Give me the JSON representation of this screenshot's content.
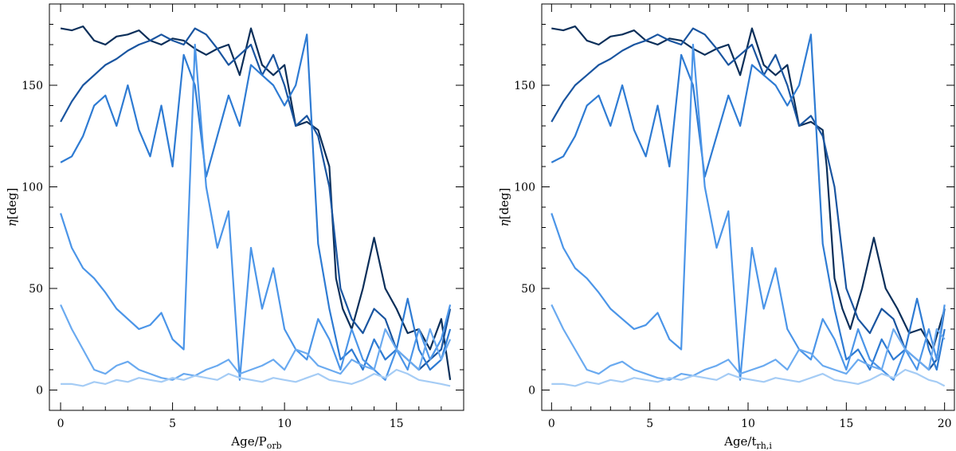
{
  "chart_data": [
    {
      "type": "line",
      "xlabel_main": "Age/P",
      "xlabel_sub": "orb",
      "ylabel_symbol": "η",
      "ylabel_unit": "[deg]",
      "xlim": [
        -0.5,
        18
      ],
      "ylim": [
        -10,
        190
      ],
      "xticks": [
        0,
        5,
        10,
        15
      ],
      "xtick_labels": [
        "0",
        "5",
        "10",
        "15"
      ],
      "yticks": [
        0,
        50,
        100,
        150
      ],
      "ytick_labels": [
        "0",
        "50",
        "100",
        "150"
      ],
      "series": [
        {
          "color": "#0b2f5a",
          "x": [
            0,
            0.5,
            1,
            1.5,
            2,
            2.5,
            3,
            3.5,
            4,
            4.5,
            5,
            5.5,
            6,
            6.5,
            7,
            7.5,
            8,
            8.5,
            9,
            9.5,
            10,
            10.5,
            11,
            11.5,
            12,
            12.3,
            12.6,
            13,
            13.5,
            14,
            14.5,
            15,
            15.5,
            16,
            16.5,
            17,
            17.4
          ],
          "y": [
            178,
            177,
            179,
            172,
            170,
            174,
            175,
            177,
            172,
            170,
            173,
            172,
            168,
            165,
            168,
            170,
            155,
            178,
            160,
            155,
            160,
            130,
            132,
            128,
            110,
            55,
            40,
            30,
            50,
            75,
            50,
            40,
            28,
            30,
            20,
            35,
            5
          ]
        },
        {
          "color": "#1a55a0",
          "x": [
            0,
            0.5,
            1,
            1.5,
            2,
            2.5,
            3,
            3.5,
            4,
            4.5,
            5,
            5.5,
            6,
            6.5,
            7,
            7.5,
            8,
            8.5,
            9,
            9.5,
            10,
            10.5,
            11,
            11.5,
            12,
            12.5,
            13,
            13.5,
            14,
            14.5,
            15,
            15.5,
            16,
            16.5,
            17,
            17.4
          ],
          "y": [
            132,
            142,
            150,
            155,
            160,
            163,
            167,
            170,
            172,
            175,
            172,
            170,
            178,
            175,
            168,
            160,
            165,
            170,
            155,
            165,
            150,
            130,
            135,
            125,
            100,
            50,
            35,
            28,
            40,
            35,
            20,
            15,
            10,
            15,
            20,
            40
          ]
        },
        {
          "color": "#2e7bd3",
          "x": [
            0,
            0.5,
            1,
            1.5,
            2,
            2.5,
            3,
            3.5,
            4,
            4.5,
            5,
            5.5,
            6,
            6.5,
            7,
            7.5,
            8,
            8.5,
            9,
            9.5,
            10,
            10.5,
            11,
            11.5,
            12,
            12.5,
            13,
            13.5,
            14,
            14.5,
            15,
            15.5,
            16,
            16.5,
            17,
            17.4
          ],
          "y": [
            112,
            115,
            125,
            140,
            145,
            130,
            150,
            128,
            115,
            140,
            110,
            165,
            150,
            105,
            125,
            145,
            130,
            160,
            155,
            150,
            140,
            150,
            175,
            72,
            40,
            15,
            20,
            10,
            25,
            15,
            20,
            45,
            20,
            10,
            15,
            30
          ]
        },
        {
          "color": "#4b95e8",
          "x": [
            0,
            0.5,
            1,
            1.5,
            2,
            2.5,
            3,
            3.5,
            4,
            4.5,
            5,
            5.5,
            6,
            6.5,
            7,
            7.5,
            8,
            8.5,
            9,
            9.5,
            10,
            10.5,
            11,
            11.5,
            12,
            12.5,
            13,
            13.5,
            14,
            14.5,
            15,
            15.5,
            16,
            16.5,
            17,
            17.4
          ],
          "y": [
            87,
            70,
            60,
            55,
            48,
            40,
            35,
            30,
            32,
            38,
            25,
            20,
            170,
            100,
            70,
            88,
            5,
            70,
            40,
            60,
            30,
            20,
            15,
            35,
            25,
            10,
            30,
            15,
            10,
            5,
            20,
            10,
            30,
            15,
            25,
            42
          ]
        },
        {
          "color": "#6aaaf0",
          "x": [
            0,
            0.5,
            1,
            1.5,
            2,
            2.5,
            3,
            3.5,
            4,
            4.5,
            5,
            5.5,
            6,
            6.5,
            7,
            7.5,
            8,
            8.5,
            9,
            9.5,
            10,
            10.5,
            11,
            11.5,
            12,
            12.5,
            13,
            13.5,
            14,
            14.5,
            15,
            15.5,
            16,
            16.5,
            17,
            17.4
          ],
          "y": [
            42,
            30,
            20,
            10,
            8,
            12,
            14,
            10,
            8,
            6,
            5,
            8,
            7,
            10,
            12,
            15,
            8,
            10,
            12,
            15,
            10,
            20,
            18,
            12,
            10,
            8,
            15,
            12,
            10,
            30,
            20,
            15,
            10,
            30,
            15,
            25
          ]
        },
        {
          "color": "#a5ccf5",
          "x": [
            0,
            0.5,
            1,
            1.5,
            2,
            2.5,
            3,
            3.5,
            4,
            4.5,
            5,
            5.5,
            6,
            6.5,
            7,
            7.5,
            8,
            8.5,
            9,
            9.5,
            10,
            10.5,
            11,
            11.5,
            12,
            12.5,
            13,
            13.5,
            14,
            14.5,
            15,
            15.5,
            16,
            16.5,
            17,
            17.4
          ],
          "y": [
            3,
            3,
            2,
            4,
            3,
            5,
            4,
            6,
            5,
            4,
            6,
            5,
            7,
            6,
            5,
            8,
            6,
            5,
            4,
            6,
            5,
            4,
            6,
            8,
            5,
            4,
            3,
            5,
            8,
            6,
            10,
            8,
            5,
            4,
            3,
            2
          ]
        }
      ]
    },
    {
      "type": "line",
      "xlabel_main": "Age/t",
      "xlabel_sub": "rh,i",
      "ylabel_symbol": "η",
      "ylabel_unit": "[deg]",
      "xlim": [
        -0.5,
        20.5
      ],
      "ylim": [
        -10,
        190
      ],
      "xticks": [
        0,
        5,
        10,
        15,
        20
      ],
      "xtick_labels": [
        "0",
        "5",
        "10",
        "15",
        "20"
      ],
      "yticks": [
        0,
        50,
        100,
        150
      ],
      "ytick_labels": [
        "0",
        "50",
        "100",
        "150"
      ],
      "series": [
        {
          "color": "#0b2f5a",
          "x": [
            0,
            0.6,
            1.2,
            1.8,
            2.4,
            3,
            3.6,
            4.2,
            4.8,
            5.4,
            6,
            6.6,
            7.2,
            7.8,
            8.4,
            9,
            9.6,
            10.2,
            10.8,
            11.4,
            12,
            12.6,
            13.2,
            13.8,
            14,
            14.4,
            14.8,
            15.2,
            15.8,
            16.4,
            17,
            17.6,
            18.2,
            18.8,
            19.4,
            20
          ],
          "y": [
            178,
            177,
            179,
            172,
            170,
            174,
            175,
            177,
            172,
            170,
            173,
            172,
            168,
            165,
            168,
            170,
            155,
            178,
            160,
            155,
            160,
            130,
            132,
            128,
            110,
            55,
            40,
            30,
            50,
            75,
            50,
            40,
            28,
            30,
            20,
            40
          ]
        },
        {
          "color": "#1a55a0",
          "x": [
            0,
            0.6,
            1.2,
            1.8,
            2.4,
            3,
            3.6,
            4.2,
            4.8,
            5.4,
            6,
            6.6,
            7.2,
            7.8,
            8.4,
            9,
            9.6,
            10.2,
            10.8,
            11.4,
            12,
            12.6,
            13.2,
            13.8,
            14.4,
            15,
            15.6,
            16.2,
            16.8,
            17.4,
            18,
            18.6,
            19.2,
            19.6,
            20
          ],
          "y": [
            132,
            142,
            150,
            155,
            160,
            163,
            167,
            170,
            172,
            175,
            172,
            170,
            178,
            175,
            168,
            160,
            165,
            170,
            155,
            165,
            150,
            130,
            135,
            125,
            100,
            50,
            35,
            28,
            40,
            35,
            20,
            15,
            10,
            15,
            40
          ]
        },
        {
          "color": "#2e7bd3",
          "x": [
            0,
            0.6,
            1.2,
            1.8,
            2.4,
            3,
            3.6,
            4.2,
            4.8,
            5.4,
            6,
            6.6,
            7.2,
            7.8,
            8.4,
            9,
            9.6,
            10.2,
            10.8,
            11.4,
            12,
            12.6,
            13.2,
            13.8,
            14.4,
            15,
            15.6,
            16.2,
            16.8,
            17.4,
            18,
            18.6,
            19.2,
            19.6,
            20
          ],
          "y": [
            112,
            115,
            125,
            140,
            145,
            130,
            150,
            128,
            115,
            140,
            110,
            165,
            150,
            105,
            125,
            145,
            130,
            160,
            155,
            150,
            140,
            150,
            175,
            72,
            40,
            15,
            20,
            10,
            25,
            15,
            20,
            45,
            20,
            10,
            30
          ]
        },
        {
          "color": "#4b95e8",
          "x": [
            0,
            0.6,
            1.2,
            1.8,
            2.4,
            3,
            3.6,
            4.2,
            4.8,
            5.4,
            6,
            6.6,
            7.2,
            7.8,
            8.4,
            9,
            9.6,
            10.2,
            10.8,
            11.4,
            12,
            12.6,
            13.2,
            13.8,
            14.4,
            15,
            15.6,
            16.2,
            16.8,
            17.4,
            18,
            18.6,
            19.2,
            19.6,
            20
          ],
          "y": [
            87,
            70,
            60,
            55,
            48,
            40,
            35,
            30,
            32,
            38,
            25,
            20,
            170,
            100,
            70,
            88,
            5,
            70,
            40,
            60,
            30,
            20,
            15,
            35,
            25,
            10,
            30,
            15,
            10,
            5,
            20,
            10,
            30,
            15,
            42
          ]
        },
        {
          "color": "#6aaaf0",
          "x": [
            0,
            0.6,
            1.2,
            1.8,
            2.4,
            3,
            3.6,
            4.2,
            4.8,
            5.4,
            6,
            6.6,
            7.2,
            7.8,
            8.4,
            9,
            9.6,
            10.2,
            10.8,
            11.4,
            12,
            12.6,
            13.2,
            13.8,
            14.4,
            15,
            15.6,
            16.2,
            16.8,
            17.4,
            18,
            18.6,
            19.2,
            19.6,
            20
          ],
          "y": [
            42,
            30,
            20,
            10,
            8,
            12,
            14,
            10,
            8,
            6,
            5,
            8,
            7,
            10,
            12,
            15,
            8,
            10,
            12,
            15,
            10,
            20,
            18,
            12,
            10,
            8,
            15,
            12,
            10,
            30,
            20,
            15,
            10,
            30,
            25
          ]
        },
        {
          "color": "#a5ccf5",
          "x": [
            0,
            0.6,
            1.2,
            1.8,
            2.4,
            3,
            3.6,
            4.2,
            4.8,
            5.4,
            6,
            6.6,
            7.2,
            7.8,
            8.4,
            9,
            9.6,
            10.2,
            10.8,
            11.4,
            12,
            12.6,
            13.2,
            13.8,
            14.4,
            15,
            15.6,
            16.2,
            16.8,
            17.4,
            18,
            18.6,
            19.2,
            19.6,
            20
          ],
          "y": [
            3,
            3,
            2,
            4,
            3,
            5,
            4,
            6,
            5,
            4,
            6,
            5,
            7,
            6,
            5,
            8,
            6,
            5,
            4,
            6,
            5,
            4,
            6,
            8,
            5,
            4,
            3,
            5,
            8,
            6,
            10,
            8,
            5,
            4,
            2
          ]
        }
      ]
    }
  ]
}
